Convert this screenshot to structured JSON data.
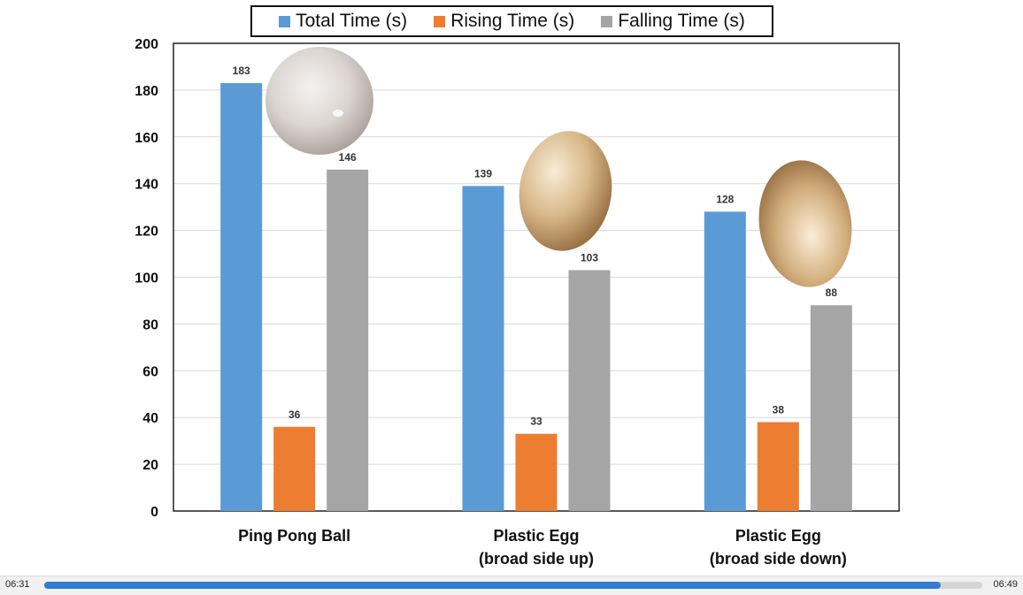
{
  "chart_data": {
    "type": "bar",
    "categories": [
      [
        "Ping Pong Ball"
      ],
      [
        "Plastic Egg",
        "(broad side up)"
      ],
      [
        "Plastic Egg",
        "(broad side down)"
      ]
    ],
    "series": [
      {
        "name": "Total Time (s)",
        "color": "#5b9bd5",
        "values": [
          183,
          139,
          128
        ]
      },
      {
        "name": "Rising Time (s)",
        "color": "#ed7d31",
        "values": [
          36,
          33,
          38
        ]
      },
      {
        "name": "Falling Time (s)",
        "color": "#a5a5a5",
        "values": [
          146,
          103,
          88
        ]
      }
    ],
    "ylim": [
      0,
      200
    ],
    "yticks": [
      0,
      20,
      40,
      60,
      80,
      100,
      120,
      140,
      160,
      180,
      200
    ],
    "grid": true,
    "legend": "top",
    "xlabel": "",
    "ylabel": "",
    "title": ""
  },
  "images": [
    "ping-pong-ball",
    "plastic-egg-broad-side-up",
    "plastic-egg-broad-side-down"
  ],
  "player": {
    "elapsed": "06:31",
    "total": "06:49",
    "progress": 0.956
  }
}
